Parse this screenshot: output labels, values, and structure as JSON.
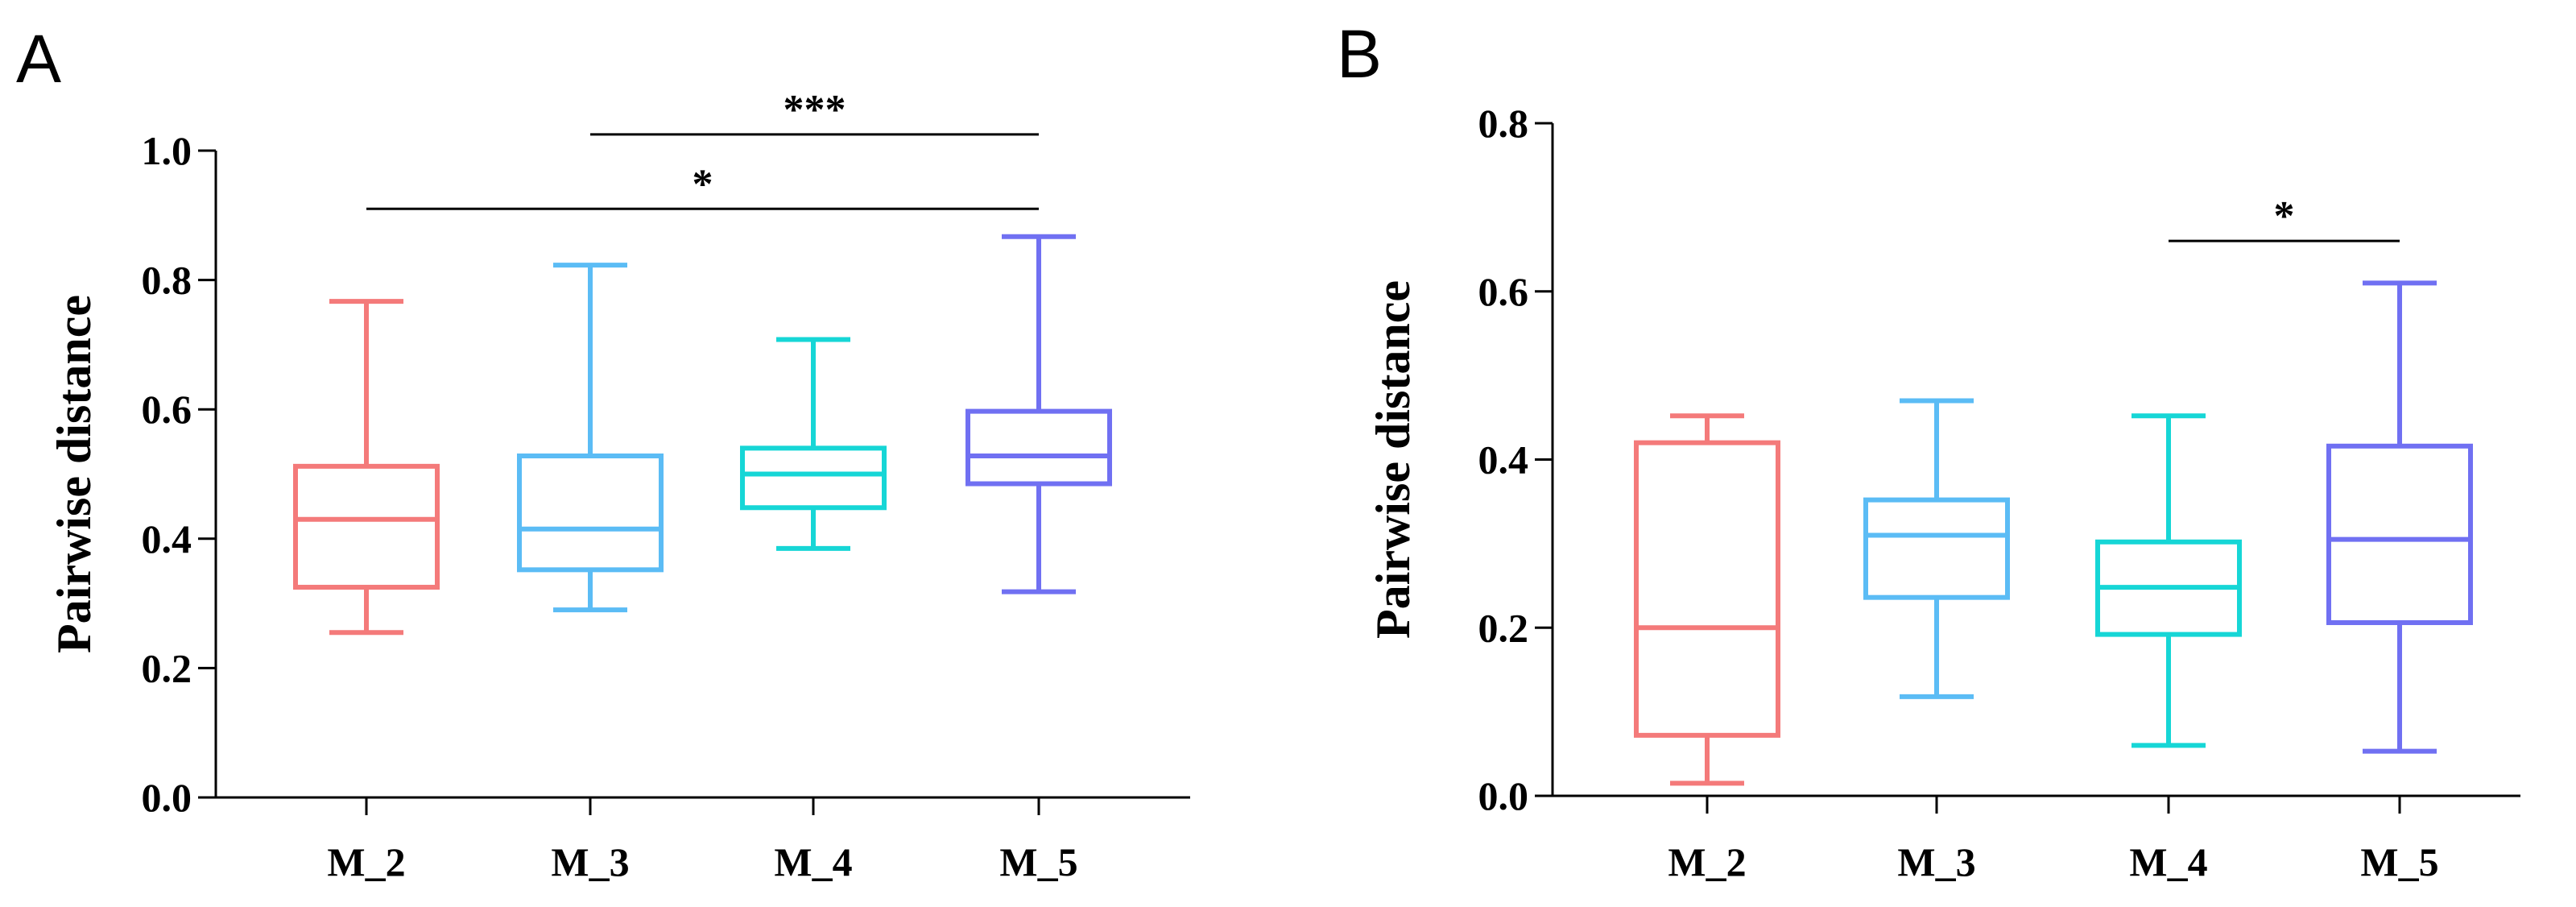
{
  "chart_data": [
    {
      "type": "boxplot",
      "panel": "A",
      "title": "",
      "xlabel": "",
      "ylabel": "Pairwise distance",
      "ylim": [
        0.0,
        1.0
      ],
      "yticks": [
        0.0,
        0.2,
        0.4,
        0.6,
        0.8,
        1.0
      ],
      "ytick_labels": [
        "0.0",
        "0.2",
        "0.4",
        "0.6",
        "0.8",
        "1.0"
      ],
      "categories": [
        "M_2",
        "M_3",
        "M_4",
        "M_5"
      ],
      "colors": [
        "#f47a7a",
        "#5bbcf5",
        "#16d6d6",
        "#7070f2"
      ],
      "boxes": [
        {
          "name": "M_2",
          "min": 0.255,
          "q1": 0.325,
          "median": 0.43,
          "q3": 0.512,
          "max": 0.767
        },
        {
          "name": "M_3",
          "min": 0.29,
          "q1": 0.352,
          "median": 0.415,
          "q3": 0.528,
          "max": 0.823
        },
        {
          "name": "M_4",
          "min": 0.385,
          "q1": 0.448,
          "median": 0.5,
          "q3": 0.54,
          "max": 0.708
        },
        {
          "name": "M_5",
          "min": 0.318,
          "q1": 0.485,
          "median": 0.528,
          "q3": 0.597,
          "max": 0.867
        }
      ],
      "significance": [
        {
          "from": "M_3",
          "to": "M_5",
          "label": "***",
          "level": 1.025
        },
        {
          "from": "M_2",
          "to": "M_5",
          "label": "*",
          "level": 0.91
        }
      ]
    },
    {
      "type": "boxplot",
      "panel": "B",
      "title": "",
      "xlabel": "",
      "ylabel": "Pairwise distance",
      "ylim": [
        0.0,
        0.8
      ],
      "yticks": [
        0.0,
        0.2,
        0.4,
        0.6,
        0.8
      ],
      "ytick_labels": [
        "0.0",
        "0.2",
        "0.4",
        "0.6",
        "0.8"
      ],
      "categories": [
        "M_2",
        "M_3",
        "M_4",
        "M_5"
      ],
      "colors": [
        "#f47a7a",
        "#5bbcf5",
        "#16d6d6",
        "#7070f2"
      ],
      "boxes": [
        {
          "name": "M_2",
          "min": 0.015,
          "q1": 0.072,
          "median": 0.2,
          "q3": 0.42,
          "max": 0.452
        },
        {
          "name": "M_3",
          "min": 0.118,
          "q1": 0.236,
          "median": 0.31,
          "q3": 0.352,
          "max": 0.47
        },
        {
          "name": "M_4",
          "min": 0.06,
          "q1": 0.192,
          "median": 0.248,
          "q3": 0.302,
          "max": 0.452
        },
        {
          "name": "M_5",
          "min": 0.053,
          "q1": 0.206,
          "median": 0.305,
          "q3": 0.416,
          "max": 0.61
        }
      ],
      "significance": [
        {
          "from": "M_4",
          "to": "M_5",
          "label": "*",
          "level": 0.66
        }
      ]
    }
  ]
}
